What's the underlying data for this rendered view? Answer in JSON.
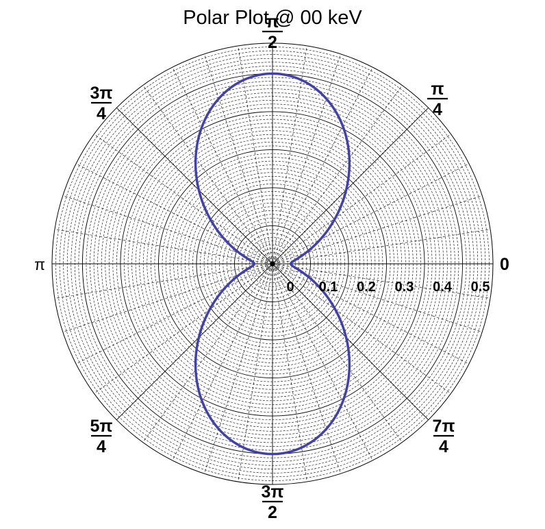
{
  "chart_data": {
    "type": "polar-line",
    "title": "Polar Plot @ 00 keV",
    "angle_labels": [
      {
        "angle_deg": 0,
        "text": "0"
      },
      {
        "angle_deg": 45,
        "num": "π",
        "den": "4"
      },
      {
        "angle_deg": 90,
        "num": "π",
        "den": "2"
      },
      {
        "angle_deg": 135,
        "num": "3π",
        "den": "4"
      },
      {
        "angle_deg": 180,
        "text": "π"
      },
      {
        "angle_deg": 225,
        "num": "5π",
        "den": "4"
      },
      {
        "angle_deg": 270,
        "num": "3π",
        "den": "2"
      },
      {
        "angle_deg": 315,
        "num": "7π",
        "den": "4"
      }
    ],
    "radial_axis": {
      "range": [
        0,
        0.58
      ],
      "ticks": [
        0,
        0.1,
        0.2,
        0.3,
        0.4,
        0.5
      ],
      "tick_labels": [
        "0",
        "0.1",
        "0.2",
        "0.3",
        "0.4",
        "0.5"
      ],
      "minor_step": 0.01
    },
    "angular_grid": {
      "major_step_deg": 45,
      "minor_step_deg": 9
    },
    "series": [
      {
        "color": "#4040b0",
        "function": "r = a + b*sin^2(theta)",
        "a": 0.048,
        "b": 0.452,
        "r_max": 0.5,
        "r_min": 0.048
      }
    ]
  }
}
